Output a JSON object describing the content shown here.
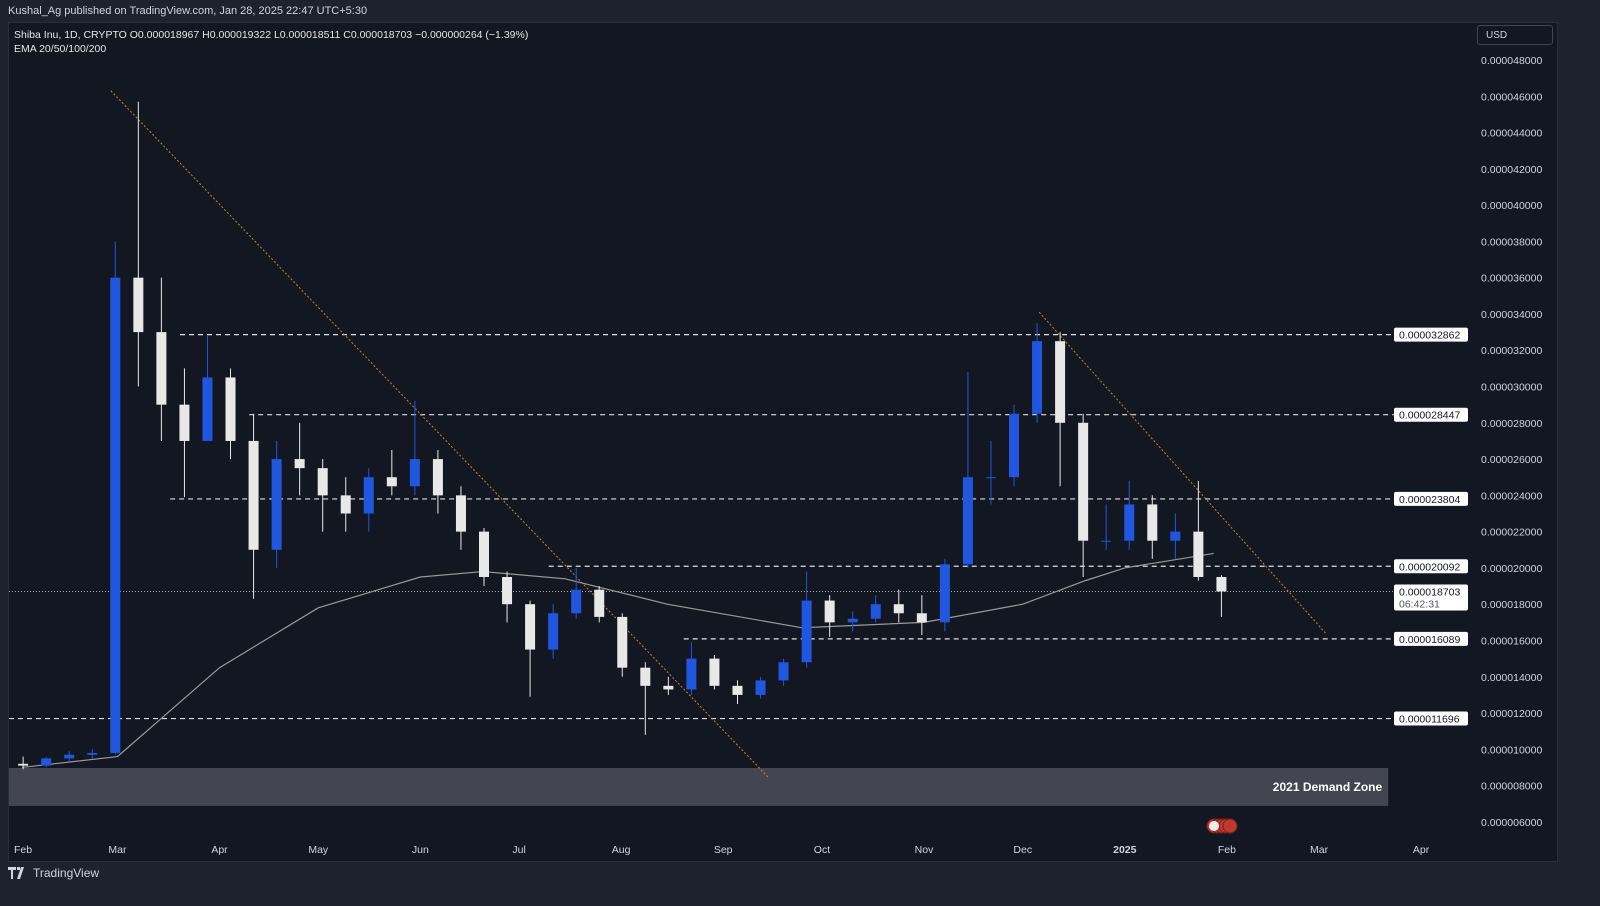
{
  "header": {
    "published": "Kushal_Ag published on TradingView.com, Jan 28, 2025 22:47 UTC+5:30"
  },
  "legend": {
    "symbol_line": "Shiba Inu, 1D, CRYPTO  O0.000018967  H0.000019322  L0.000018511  C0.000018703  −0.000000264 (−1.39%)",
    "indicator": "EMA 20/50/100/200"
  },
  "currency_button": "USD",
  "footer": {
    "brand": "TradingView"
  },
  "colors": {
    "up": "#2157e0",
    "down": "#e8e8e8",
    "ema": "#9a9a9a",
    "trendline": "#c8843a",
    "zone": "#434651",
    "background": "#131722"
  },
  "chart_data": {
    "type": "candlestick",
    "price_unit": "USD (×1e-6)",
    "ylim": [
      5e-06,
      4.9e-05
    ],
    "y_ticks": [
      "0.000048000",
      "0.000046000",
      "0.000044000",
      "0.000042000",
      "0.000040000",
      "0.000038000",
      "0.000036000",
      "0.000034000",
      "0.000032000",
      "0.000030000",
      "0.000028000",
      "0.000026000",
      "0.000024000",
      "0.000022000",
      "0.000020000",
      "0.000018000",
      "0.000016000",
      "0.000014000",
      "0.000012000",
      "0.000010000",
      "0.000008000",
      "0.000006000"
    ],
    "y_tick_values": [
      48,
      46,
      44,
      42,
      40,
      38,
      36,
      34,
      32,
      30,
      28,
      26,
      24,
      22,
      20,
      18,
      16,
      14,
      12,
      10,
      8,
      6
    ],
    "x_ticks": [
      {
        "label": "Feb",
        "date": "2024-02-01"
      },
      {
        "label": "Mar",
        "date": "2024-03-01"
      },
      {
        "label": "Apr",
        "date": "2024-04-01"
      },
      {
        "label": "May",
        "date": "2024-05-01"
      },
      {
        "label": "Jun",
        "date": "2024-06-01"
      },
      {
        "label": "Jul",
        "date": "2024-07-01"
      },
      {
        "label": "Aug",
        "date": "2024-08-01"
      },
      {
        "label": "Sep",
        "date": "2024-09-01"
      },
      {
        "label": "Oct",
        "date": "2024-10-01"
      },
      {
        "label": "Nov",
        "date": "2024-11-01"
      },
      {
        "label": "Dec",
        "date": "2024-12-01"
      },
      {
        "label": "2025",
        "date": "2025-01-01"
      },
      {
        "label": "Feb",
        "date": "2025-02-01"
      },
      {
        "label": "Mar",
        "date": "2025-03-01"
      },
      {
        "label": "Apr",
        "date": "2025-04-01"
      }
    ],
    "candles_weekly_approx": [
      [
        "2024-01-29",
        9.2,
        9.6,
        8.9,
        9.1
      ],
      [
        "2024-02-05",
        9.1,
        9.6,
        9.0,
        9.5
      ],
      [
        "2024-02-12",
        9.5,
        9.9,
        9.3,
        9.7
      ],
      [
        "2024-02-19",
        9.7,
        10.0,
        9.5,
        9.8
      ],
      [
        "2024-02-26",
        9.8,
        38.0,
        9.7,
        36.0
      ],
      [
        "2024-03-04",
        36.0,
        45.7,
        30.0,
        33.0
      ],
      [
        "2024-03-11",
        33.0,
        36.0,
        27.0,
        29.0
      ],
      [
        "2024-03-18",
        29.0,
        31.0,
        23.9,
        27.0
      ],
      [
        "2024-03-25",
        27.0,
        32.8,
        27.0,
        30.5
      ],
      [
        "2024-04-01",
        30.5,
        31.0,
        26.0,
        27.0
      ],
      [
        "2024-04-08",
        27.0,
        28.5,
        18.3,
        21.0
      ],
      [
        "2024-04-15",
        21.0,
        27.0,
        20.0,
        26.0
      ],
      [
        "2024-04-22",
        26.0,
        28.0,
        24.0,
        25.5
      ],
      [
        "2024-04-29",
        25.5,
        26.0,
        22.0,
        24.0
      ],
      [
        "2024-05-06",
        24.0,
        25.0,
        22.0,
        23.0
      ],
      [
        "2024-05-13",
        23.0,
        25.5,
        22.0,
        25.0
      ],
      [
        "2024-05-20",
        25.0,
        26.5,
        24.0,
        24.5
      ],
      [
        "2024-05-27",
        24.5,
        29.2,
        24.0,
        26.0
      ],
      [
        "2024-06-03",
        26.0,
        26.5,
        23.0,
        24.0
      ],
      [
        "2024-06-10",
        24.0,
        24.5,
        21.0,
        22.0
      ],
      [
        "2024-06-17",
        22.0,
        22.2,
        19.0,
        19.5
      ],
      [
        "2024-06-24",
        19.5,
        19.8,
        17.0,
        18.0
      ],
      [
        "2024-07-01",
        18.0,
        18.2,
        12.9,
        15.5
      ],
      [
        "2024-07-08",
        15.5,
        18.0,
        15.0,
        17.5
      ],
      [
        "2024-07-15",
        17.5,
        20.0,
        17.2,
        18.8
      ],
      [
        "2024-07-22",
        18.8,
        19.0,
        17.0,
        17.3
      ],
      [
        "2024-07-29",
        17.3,
        17.5,
        14.0,
        14.5
      ],
      [
        "2024-08-05",
        14.5,
        14.8,
        10.8,
        13.5
      ],
      [
        "2024-08-12",
        13.5,
        14.0,
        13.0,
        13.3
      ],
      [
        "2024-08-19",
        13.3,
        15.9,
        13.0,
        15.0
      ],
      [
        "2024-08-26",
        15.0,
        15.2,
        13.3,
        13.5
      ],
      [
        "2024-09-02",
        13.5,
        13.8,
        12.5,
        13.0
      ],
      [
        "2024-09-09",
        13.0,
        14.0,
        12.8,
        13.8
      ],
      [
        "2024-09-16",
        13.8,
        15.0,
        13.5,
        14.8
      ],
      [
        "2024-09-23",
        14.8,
        19.8,
        14.5,
        18.2
      ],
      [
        "2024-09-30",
        18.2,
        18.5,
        16.2,
        17.0
      ],
      [
        "2024-10-07",
        17.0,
        17.6,
        16.5,
        17.2
      ],
      [
        "2024-10-14",
        17.2,
        18.5,
        17.0,
        18.0
      ],
      [
        "2024-10-21",
        18.0,
        18.8,
        17.0,
        17.5
      ],
      [
        "2024-10-28",
        17.5,
        18.5,
        16.3,
        17.0
      ],
      [
        "2024-11-04",
        17.0,
        20.5,
        16.5,
        20.2
      ],
      [
        "2024-11-11",
        20.2,
        30.8,
        20.0,
        25.0
      ],
      [
        "2024-11-18",
        25.0,
        27.0,
        23.5,
        25.0
      ],
      [
        "2024-11-25",
        25.0,
        29.0,
        24.5,
        28.5
      ],
      [
        "2024-12-02",
        28.5,
        33.5,
        28.0,
        32.5
      ],
      [
        "2024-12-09",
        32.5,
        33.0,
        24.5,
        28.0
      ],
      [
        "2024-12-16",
        28.0,
        28.5,
        19.5,
        21.5
      ],
      [
        "2024-12-23",
        21.5,
        23.5,
        21.0,
        21.5
      ],
      [
        "2024-12-30",
        21.5,
        24.8,
        21.0,
        23.5
      ],
      [
        "2025-01-06",
        23.5,
        24.0,
        20.5,
        21.5
      ],
      [
        "2025-01-13",
        21.5,
        23.0,
        20.5,
        22.0
      ],
      [
        "2025-01-20",
        22.0,
        24.8,
        19.3,
        19.5
      ],
      [
        "2025-01-27",
        19.5,
        19.6,
        17.3,
        18.7
      ]
    ],
    "ema200_approx": [
      [
        "2024-02-01",
        9.0
      ],
      [
        "2024-03-01",
        9.6
      ],
      [
        "2024-04-01",
        14.5
      ],
      [
        "2024-05-01",
        17.8
      ],
      [
        "2024-06-01",
        19.5
      ],
      [
        "2024-06-20",
        19.8
      ],
      [
        "2024-07-15",
        19.4
      ],
      [
        "2024-08-15",
        18.0
      ],
      [
        "2024-09-25",
        16.7
      ],
      [
        "2024-11-01",
        17.0
      ],
      [
        "2024-12-01",
        18.0
      ],
      [
        "2024-12-20",
        19.3
      ],
      [
        "2025-01-01",
        20.0
      ],
      [
        "2025-01-28",
        20.8
      ]
    ],
    "levels": [
      {
        "value": 32.862,
        "label": "0.000032862",
        "from": "2024-03-20"
      },
      {
        "value": 28.447,
        "label": "0.000028447",
        "from": "2024-04-10"
      },
      {
        "value": 23.804,
        "label": "0.000023804",
        "from": "2024-03-17"
      },
      {
        "value": 20.092,
        "label": "0.000020092",
        "from": "2024-07-10"
      },
      {
        "value": 16.089,
        "label": "0.000016089",
        "from": "2024-08-20"
      },
      {
        "value": 11.696,
        "label": "0.000011696",
        "from": "2024-01-28"
      }
    ],
    "current_price": {
      "value": 18.703,
      "label": "0.000018703",
      "countdown": "06:42:31"
    },
    "trendlines": [
      {
        "from": [
          "2024-02-28",
          46.3
        ],
        "to": [
          "2024-09-15",
          8.4
        ]
      },
      {
        "from": [
          "2024-12-06",
          34.1
        ],
        "to": [
          "2025-03-03",
          16.4
        ]
      }
    ],
    "zone": {
      "label": "2021 Demand Zone",
      "top": 8.97,
      "bottom": 6.88,
      "from": "2024-01-28",
      "to": "2025-03-22"
    }
  }
}
